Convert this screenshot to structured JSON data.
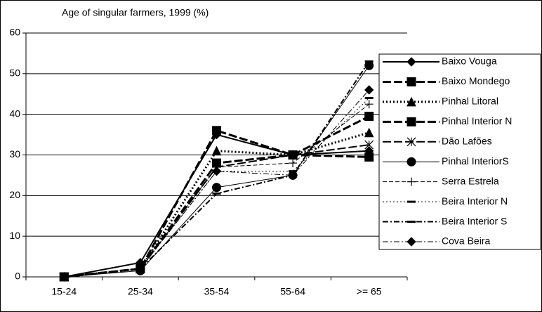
{
  "chart_data": {
    "type": "line",
    "title": "Age of singular farmers, 1999 (%)",
    "categories": [
      "15-24",
      "25-34",
      "35-54",
      "55-64",
      ">= 65"
    ],
    "ylim": [
      0,
      60
    ],
    "yticks": [
      0,
      10,
      20,
      30,
      40,
      50,
      60
    ],
    "grid": true,
    "legend": "right",
    "series": [
      {
        "name": "Baixo Vouga",
        "color": "#000000",
        "dash": "solid",
        "width": 2,
        "marker": "diamond",
        "values": [
          0,
          3.5,
          35,
          30,
          31
        ]
      },
      {
        "name": "Baixo Mondego",
        "color": "#000000",
        "dash": "longdash",
        "width": 3,
        "marker": "square",
        "values": [
          0,
          2,
          36,
          30,
          39.5
        ]
      },
      {
        "name": "Pinhal Litoral",
        "color": "#000000",
        "dash": "dot",
        "width": 3,
        "marker": "triangle",
        "values": [
          0,
          2,
          31,
          30,
          35.5
        ]
      },
      {
        "name": "Pinhal Interior N",
        "color": "#000000",
        "dash": "longdash",
        "width": 3,
        "marker": "square",
        "values": [
          0,
          2,
          28,
          30,
          29.5
        ]
      },
      {
        "name": "Dão Lafões",
        "color": "#000000",
        "dash": "longdash",
        "width": 2,
        "marker": "asterisk",
        "values": [
          0,
          2,
          27,
          30,
          32.5
        ]
      },
      {
        "name": "Pinhal InteriorS",
        "color": "#000000",
        "dash": "solid",
        "width": 1,
        "marker": "circle",
        "values": [
          0,
          1.5,
          22,
          25,
          52
        ]
      },
      {
        "name": "Serra Estrela",
        "color": "#000000",
        "dash": "dash",
        "width": 1,
        "marker": "plus",
        "values": [
          0,
          2,
          27,
          28,
          42.5
        ]
      },
      {
        "name": "Beira Interior N",
        "color": "#000000",
        "dash": "dot",
        "width": 1,
        "marker": "dash",
        "values": [
          0,
          2,
          26,
          26,
          44
        ]
      },
      {
        "name": "Beira Interior S",
        "color": "#000000",
        "dash": "dashdot",
        "width": 2,
        "marker": "dash",
        "values": [
          0,
          2,
          20.5,
          25,
          53
        ]
      },
      {
        "name": "Cova Beira",
        "color": "#000000",
        "dash": "dashdot",
        "width": 1,
        "marker": "diamond",
        "values": [
          0,
          2,
          26,
          25,
          46
        ]
      }
    ]
  }
}
